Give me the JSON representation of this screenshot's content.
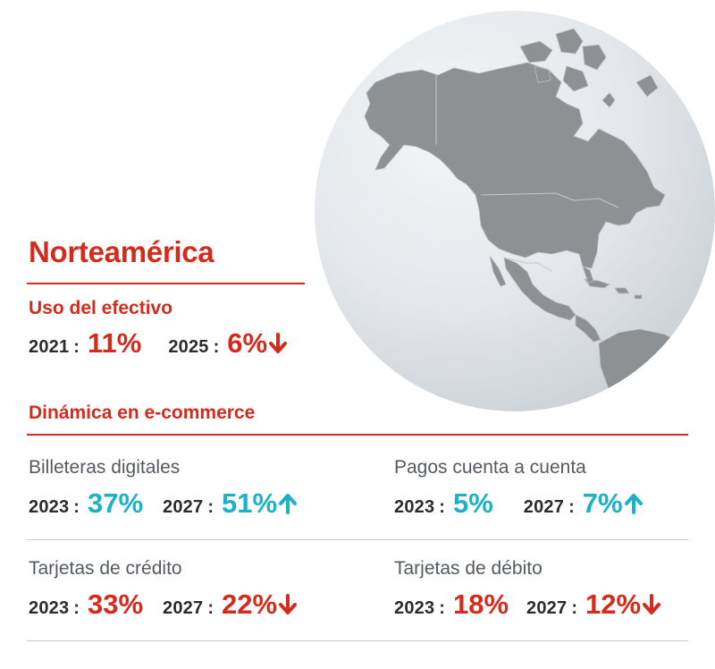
{
  "region": {
    "title": "Norteamérica"
  },
  "cash_use": {
    "heading": "Uso del efectivo",
    "items": [
      {
        "year": "2021",
        "value": "11%",
        "color": "#d42b1c",
        "trend": "none"
      },
      {
        "year": "2025",
        "value": "6%",
        "color": "#d42b1c",
        "trend": "down"
      }
    ]
  },
  "ecommerce": {
    "heading": "Dinámica en e-commerce",
    "methods": [
      {
        "label": "Billeteras digitales",
        "items": [
          {
            "year": "2023",
            "value": "37%",
            "trend": "none"
          },
          {
            "year": "2027",
            "value": "51%",
            "trend": "up"
          }
        ],
        "color": "#1bb1c8"
      },
      {
        "label": "Pagos cuenta a cuenta",
        "items": [
          {
            "year": "2023",
            "value": "5%",
            "trend": "none"
          },
          {
            "year": "2027",
            "value": "7%",
            "trend": "up"
          }
        ],
        "color": "#1bb1c8"
      },
      {
        "label": "Tarjetas de crédito",
        "items": [
          {
            "year": "2023",
            "value": "33%",
            "trend": "none"
          },
          {
            "year": "2027",
            "value": "22%",
            "trend": "down"
          }
        ],
        "color": "#d42b1c"
      },
      {
        "label": "Tarjetas de débito",
        "items": [
          {
            "year": "2023",
            "value": "18%",
            "trend": "none"
          },
          {
            "year": "2027",
            "value": "12%",
            "trend": "down"
          }
        ],
        "color": "#d42b1c"
      }
    ]
  },
  "colors": {
    "accent_red": "#d42b1c",
    "accent_teal": "#1bb1c8",
    "land_gray": "#8e9193",
    "globe_light": "#f2f4f6",
    "globe_dark": "#cfd4d9"
  },
  "icons": {
    "globe": "north-america-globe-icon",
    "up": "arrow-up-icon",
    "down": "arrow-down-icon"
  }
}
